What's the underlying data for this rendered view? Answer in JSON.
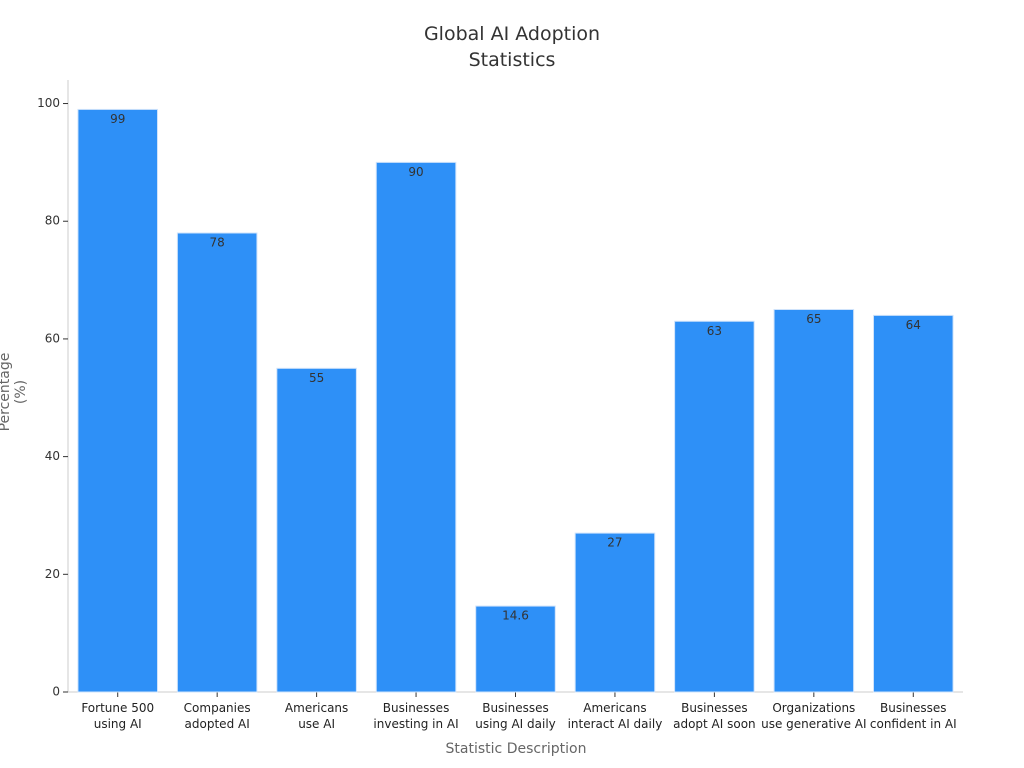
{
  "chart_data": {
    "type": "bar",
    "title": "Global AI Adoption\nStatistics",
    "x_label": "Statistic Description",
    "y_label": "Percentage (%)",
    "categories": [
      "Fortune 500\nusing AI",
      "Companies\nadopted AI",
      "Americans\nuse AI",
      "Businesses\ninvesting in AI",
      "Businesses\nusing AI daily",
      "Americans\ninteract AI daily",
      "Businesses\nadopt AI soon",
      "Organizations\nuse generative AI",
      "Businesses\nconfident in AI"
    ],
    "values": [
      99,
      78,
      55,
      90,
      14.6,
      27,
      63,
      65,
      64
    ],
    "color": "#2e90f7",
    "ylim": [
      0,
      104
    ],
    "yticks": [
      0,
      20,
      40,
      60,
      80,
      100
    ],
    "grid": false
  }
}
